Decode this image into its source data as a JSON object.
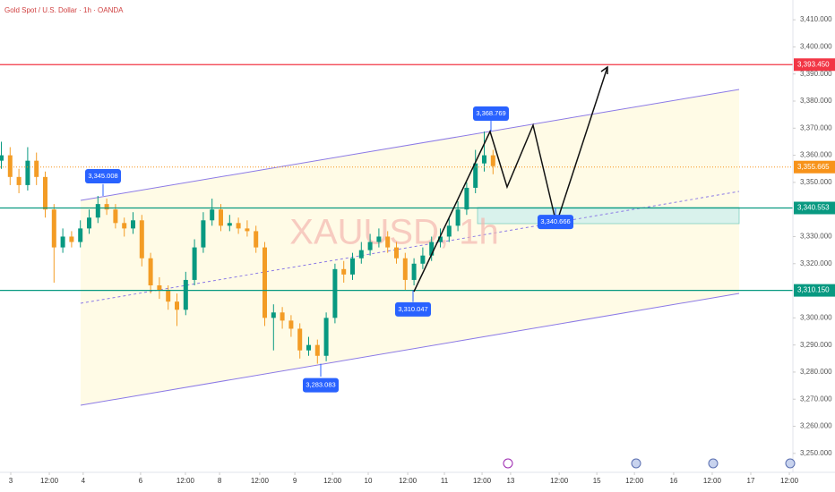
{
  "chart_data": {
    "type": "candlestick",
    "title": "Gold Spot / U.S. Dollar · 1h · OANDA",
    "watermark": "XAUUSD, 1h",
    "up_color": "#089981",
    "down_color": "#f39c25",
    "xlim": [
      -3.43,
      249.43
    ],
    "ylim": [
      3247.3,
      3417.3
    ],
    "grid": false,
    "x": [
      -3,
      -0.2,
      2.6,
      5.4,
      8.2,
      11,
      13.8,
      16.6,
      19.4,
      22.2,
      25,
      27.8,
      30.6,
      33.4,
      36.2,
      39,
      41.8,
      44.6,
      47.4,
      50.2,
      53,
      55.8,
      58.6,
      61.4,
      64.2,
      67,
      69.8,
      72.6,
      75.4,
      78.2,
      81,
      83.8,
      86.6,
      89.4,
      92.2,
      95,
      97.8,
      100.6,
      103.4,
      106.2,
      109,
      111.8,
      114.6,
      117.4,
      120.2,
      123,
      125.8,
      128.6,
      131.4,
      134.2,
      137,
      139.8,
      142.6,
      145.4,
      148.2,
      151,
      153.8
    ],
    "open": [
      3358,
      3360,
      3352,
      3349,
      3358,
      3352,
      3340,
      3326,
      3330,
      3328,
      3333,
      3337,
      3342,
      3340,
      3335,
      3333,
      3336,
      3322,
      3312,
      3310,
      3306,
      3303,
      3314,
      3326,
      3336,
      3340,
      3334,
      3335,
      3333,
      3332,
      3326,
      3300,
      3302,
      3299,
      3296,
      3288,
      3290,
      3286,
      3300,
      3318,
      3316,
      3322,
      3325,
      3328,
      3330,
      3326,
      3322,
      3314,
      3320,
      3323,
      3328,
      3330,
      3334,
      3340,
      3348,
      3357,
      3360
    ],
    "high": [
      3365,
      3363,
      3355,
      3363,
      3361,
      3354,
      3342,
      3333,
      3332,
      3336,
      3340,
      3345.008,
      3344,
      3342,
      3337,
      3339,
      3338,
      3324,
      3315,
      3312,
      3309,
      3317,
      3329,
      3339,
      3344,
      3342,
      3338,
      3337,
      3336,
      3334,
      3328,
      3305,
      3304,
      3301,
      3298,
      3293,
      3292,
      3302,
      3320,
      3321,
      3324,
      3328,
      3331,
      3333,
      3332,
      3328,
      3324,
      3322,
      3326,
      3330,
      3333,
      3337,
      3343,
      3350,
      3362,
      3368.769,
      3362
    ],
    "low": [
      3355,
      3349,
      3346,
      3347,
      3349,
      3337,
      3313,
      3324,
      3326,
      3326,
      3331,
      3335,
      3338,
      3333,
      3330,
      3331,
      3319,
      3309,
      3307,
      3303,
      3297,
      3301,
      3312,
      3324,
      3334,
      3332,
      3332,
      3331,
      3330,
      3324,
      3297,
      3288,
      3296,
      3293,
      3285,
      3286,
      3283.083,
      3284,
      3298,
      3313,
      3314,
      3320,
      3323,
      3326,
      3324,
      3320,
      3310.047,
      3312,
      3318,
      3321,
      3326,
      3328,
      3332,
      3338,
      3346,
      3354,
      3353
    ],
    "close": [
      3360,
      3352,
      3349,
      3358,
      3352,
      3340,
      3326,
      3330,
      3328,
      3333,
      3337,
      3342,
      3340,
      3335,
      3333,
      3336,
      3322,
      3312,
      3310,
      3306,
      3303,
      3314,
      3326,
      3336,
      3340,
      3334,
      3335,
      3333,
      3332,
      3326,
      3300,
      3302,
      3299,
      3296,
      3288,
      3290,
      3286,
      3300,
      3318,
      3316,
      3322,
      3325,
      3328,
      3330,
      3326,
      3322,
      3314,
      3320,
      3323,
      3328,
      3330,
      3334,
      3340,
      3348,
      3357,
      3360,
      3356
    ],
    "yticks": [
      {
        "value": 3250,
        "label": "3,250.000"
      },
      {
        "value": 3260,
        "label": "3,260.000"
      },
      {
        "value": 3270,
        "label": "3,270.000"
      },
      {
        "value": 3280,
        "label": "3,280.000"
      },
      {
        "value": 3290,
        "label": "3,290.000"
      },
      {
        "value": 3300,
        "label": "3,300.000"
      },
      {
        "value": 3320,
        "label": "3,320.000"
      },
      {
        "value": 3330,
        "label": "3,330.000"
      },
      {
        "value": 3350,
        "label": "3,350.000"
      },
      {
        "value": 3360,
        "label": "3,360.000"
      },
      {
        "value": 3370,
        "label": "3,370.000"
      },
      {
        "value": 3380,
        "label": "3,380.000"
      },
      {
        "value": 3390,
        "label": "3,390.000"
      },
      {
        "value": 3400,
        "label": "3,400.000"
      },
      {
        "value": 3410,
        "label": "3,410.000"
      }
    ],
    "xticks": [
      {
        "value": 0,
        "label": "3"
      },
      {
        "value": 12.3,
        "label": "12:00"
      },
      {
        "value": 23.1,
        "label": "4"
      },
      {
        "value": 41.4,
        "label": "6"
      },
      {
        "value": 55.7,
        "label": "12:00"
      },
      {
        "value": 66.6,
        "label": "8"
      },
      {
        "value": 79.4,
        "label": "12:00"
      },
      {
        "value": 90.6,
        "label": "9"
      },
      {
        "value": 102.6,
        "label": "12:00"
      },
      {
        "value": 114,
        "label": "10"
      },
      {
        "value": 126.6,
        "label": "12:00"
      },
      {
        "value": 138.3,
        "label": "11"
      },
      {
        "value": 150.3,
        "label": "12:00"
      },
      {
        "value": 159.4,
        "label": "13"
      },
      {
        "value": 174.9,
        "label": "12:00"
      },
      {
        "value": 186.9,
        "label": "15"
      },
      {
        "value": 198.9,
        "label": "12:00"
      },
      {
        "value": 211.4,
        "label": "16"
      },
      {
        "value": 223.7,
        "label": "12:00"
      },
      {
        "value": 236,
        "label": "17"
      },
      {
        "value": 248.3,
        "label": "12:00"
      }
    ],
    "levels": [
      {
        "value": 3393.45,
        "label": "3,393.450",
        "color": "#f23645"
      },
      {
        "value": 3355.665,
        "label": "3,355.665",
        "color": "#f7931a"
      },
      {
        "value": 3340.553,
        "label": "3,340.553",
        "color": "#089981"
      },
      {
        "value": 3310.15,
        "label": "3,310.150",
        "color": "#089981"
      }
    ],
    "annotations": [
      {
        "value": 3345.008,
        "label": "3,345.008"
      },
      {
        "value": 3368.769,
        "label": "3,368.769"
      },
      {
        "value": 3310.047,
        "label": "3,310.047"
      },
      {
        "value": 3283.083,
        "label": "3,283.083"
      },
      {
        "value": 3340.666,
        "label": "3,340.666"
      }
    ]
  }
}
